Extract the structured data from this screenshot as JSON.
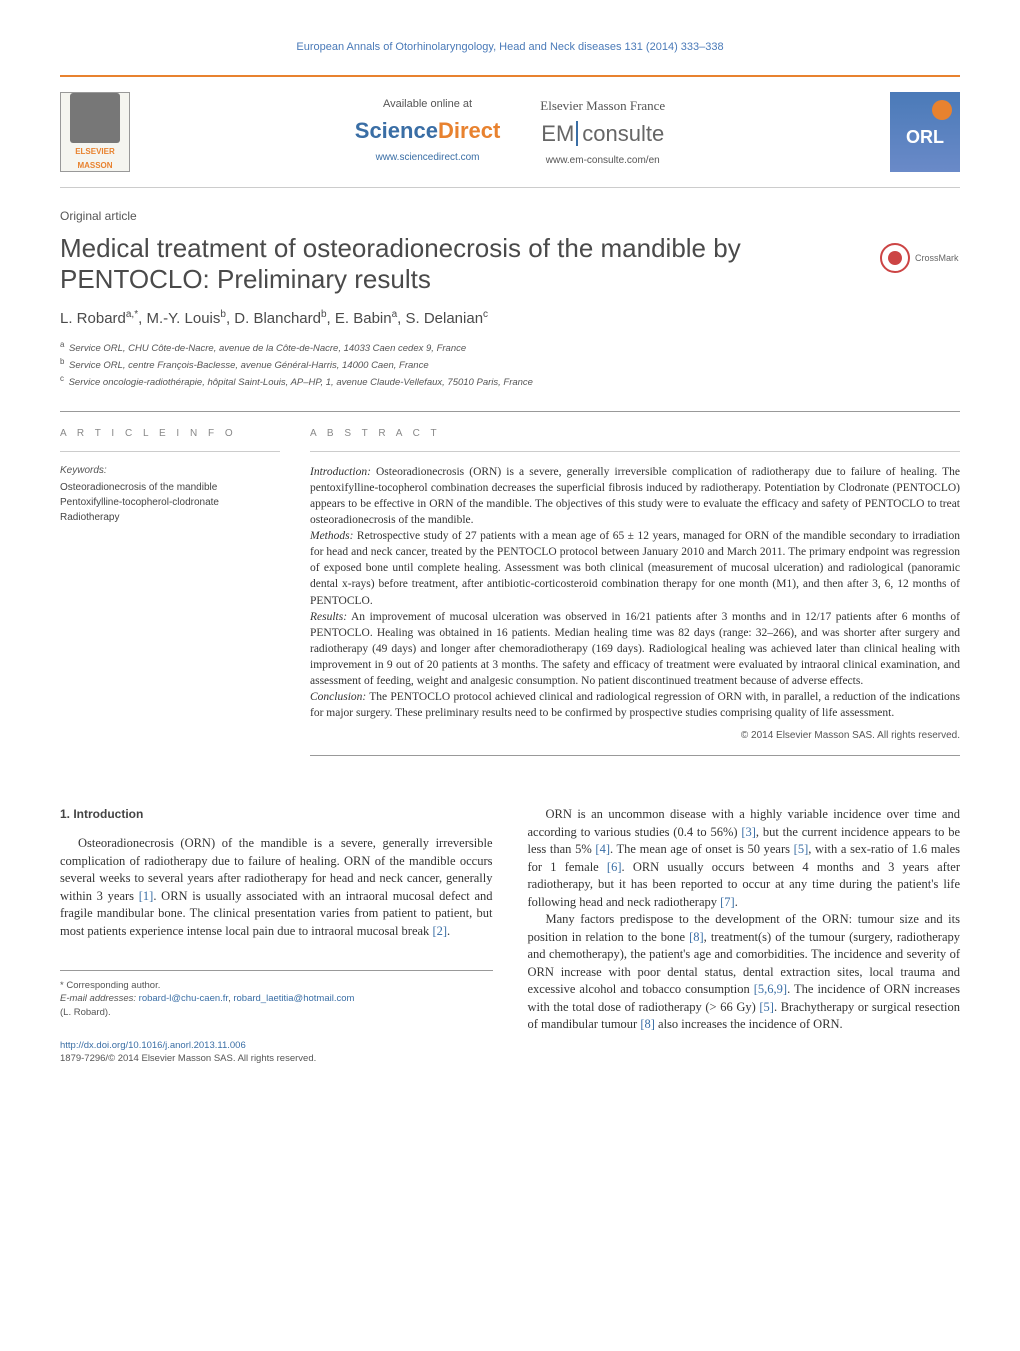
{
  "journal_header": "European Annals of Otorhinolaryngology, Head and Neck diseases 131 (2014) 333–338",
  "header": {
    "available_label": "Available online at",
    "sciencedirect_prefix": "Science",
    "sciencedirect_suffix": "Direct",
    "sciencedirect_url": "www.sciencedirect.com",
    "em_label": "Elsevier Masson France",
    "em_prefix": "EM",
    "em_suffix": "consulte",
    "em_url": "www.em-consulte.com/en",
    "elsevier_name": "ELSEVIER",
    "elsevier_sub": "MASSON",
    "orl_text": "ORL",
    "crossmark_label": "CrossMark"
  },
  "article_type": "Original article",
  "title": "Medical treatment of osteoradionecrosis of the mandible by PENTOCLO: Preliminary results",
  "authors_html": "L. Robard<sup>a,*</sup>, M.-Y. Louis<sup>b</sup>, D. Blanchard<sup>b</sup>, E. Babin<sup>a</sup>, S. Delanian<sup>c</sup>",
  "affiliations": {
    "a": "Service ORL, CHU Côte-de-Nacre, avenue de la Côte-de-Nacre, 14033 Caen cedex 9, France",
    "b": "Service ORL, centre François-Baclesse, avenue Général-Harris, 14000 Caen, France",
    "c": "Service oncologie-radiothérapie, hôpital Saint-Louis, AP–HP, 1, avenue Claude-Vellefaux, 75010 Paris, France"
  },
  "article_info_heading": "A R T I C L E   I N F O",
  "keywords_label": "Keywords:",
  "keywords": [
    "Osteoradionecrosis of the mandible",
    "Pentoxifylline-tocopherol-clodronate",
    "Radiotherapy"
  ],
  "abstract_heading": "A B S T R A C T",
  "abstract": {
    "introduction_label": "Introduction:",
    "introduction": " Osteoradionecrosis (ORN) is a severe, generally irreversible complication of radiotherapy due to failure of healing. The pentoxifylline-tocopherol combination decreases the superficial fibrosis induced by radiotherapy. Potentiation by Clodronate (PENTOCLO) appears to be effective in ORN of the mandible. The objectives of this study were to evaluate the efficacy and safety of PENTOCLO to treat osteoradionecrosis of the mandible.",
    "methods_label": "Methods:",
    "methods": " Retrospective study of 27 patients with a mean age of 65 ± 12 years, managed for ORN of the mandible secondary to irradiation for head and neck cancer, treated by the PENTOCLO protocol between January 2010 and March 2011. The primary endpoint was regression of exposed bone until complete healing. Assessment was both clinical (measurement of mucosal ulceration) and radiological (panoramic dental x-rays) before treatment, after antibiotic-corticosteroid combination therapy for one month (M1), and then after 3, 6, 12 months of PENTOCLO.",
    "results_label": "Results:",
    "results": " An improvement of mucosal ulceration was observed in 16/21 patients after 3 months and in 12/17 patients after 6 months of PENTOCLO. Healing was obtained in 16 patients. Median healing time was 82 days (range: 32–266), and was shorter after surgery and radiotherapy (49 days) and longer after chemoradiotherapy (169 days). Radiological healing was achieved later than clinical healing with improvement in 9 out of 20 patients at 3 months. The safety and efficacy of treatment were evaluated by intraoral clinical examination, and assessment of feeding, weight and analgesic consumption. No patient discontinued treatment because of adverse effects.",
    "conclusion_label": "Conclusion:",
    "conclusion": " The PENTOCLO protocol achieved clinical and radiological regression of ORN with, in parallel, a reduction of the indications for major surgery. These preliminary results need to be confirmed by prospective studies comprising quality of life assessment."
  },
  "copyright": "© 2014 Elsevier Masson SAS. All rights reserved.",
  "body": {
    "intro_heading": "1.  Introduction",
    "col1_p1": "Osteoradionecrosis (ORN) of the mandible is a severe, generally irreversible complication of radiotherapy due to failure of healing. ORN of the mandible occurs several weeks to several years after radiotherapy for head and neck cancer, generally within 3 years [1]. ORN is usually associated with an intraoral mucosal defect and fragile mandibular bone. The clinical presentation varies from patient to patient, but most patients experience intense local pain due to intraoral mucosal break [2].",
    "col2_p1": "ORN is an uncommon disease with a highly variable incidence over time and according to various studies (0.4 to 56%) [3], but the current incidence appears to be less than 5% [4]. The mean age of onset is 50 years [5], with a sex-ratio of 1.6 males for 1 female [6]. ORN usually occurs between 4 months and 3 years after radiotherapy, but it has been reported to occur at any time during the patient's life following head and neck radiotherapy [7].",
    "col2_p2": "Many factors predispose to the development of the ORN: tumour size and its position in relation to the bone [8], treatment(s) of the tumour (surgery, radiotherapy and chemotherapy), the patient's age and comorbidities. The incidence and severity of ORN increase with poor dental status, dental extraction sites, local trauma and excessive alcohol and tobacco consumption [5,6,9]. The incidence of ORN increases with the total dose of radiotherapy (> 66 Gy) [5]. Brachytherapy or surgical resection of mandibular tumour [8] also increases the incidence of ORN."
  },
  "footer": {
    "corresponding_label": "* Corresponding author.",
    "email_label": "E-mail addresses:",
    "email1": "robard-l@chu-caen.fr",
    "email2": "robard_laetitia@hotmail.com",
    "email_name": "(L. Robard).",
    "doi_url": "http://dx.doi.org/10.1016/j.anorl.2013.11.006",
    "issn_line": "1879-7296/© 2014 Elsevier Masson SAS. All rights reserved."
  },
  "colors": {
    "link": "#3a6ea5",
    "orange": "#e8822f",
    "header_blue": "#4a7ab8"
  }
}
